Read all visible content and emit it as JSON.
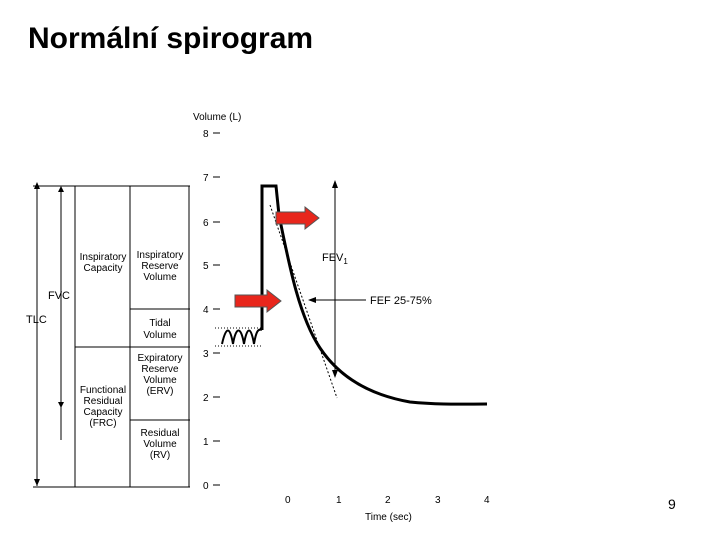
{
  "slide": {
    "title": "Normální spirogram",
    "page_number": "9"
  },
  "chart_data": {
    "type": "line",
    "ylabel": "Volume (L)",
    "xlabel": "Time (sec)",
    "y_ticks": [
      "0",
      "1",
      "2",
      "3",
      "4",
      "5",
      "6",
      "7",
      "8"
    ],
    "x_ticks": [
      "0",
      "1",
      "2",
      "3",
      "4"
    ],
    "xlim": [
      0,
      4
    ],
    "ylim": [
      0,
      8
    ],
    "curve_label": "FEV",
    "curve_label_sub": "1",
    "flow_label": "FEF 25-75%",
    "lung_volumes": {
      "irv": "Inspiratory Reserve Volume",
      "tidal": "Tidal Volume",
      "erv": "Expiratory Reserve Volume (ERV)",
      "rv": "Residual Volume (RV)"
    },
    "capacities": {
      "ic": "Inspiratory Capacity",
      "frc": "Functional Residual Capacity (FRC)",
      "fvc": "FVC",
      "tlc": "TLC"
    },
    "annotation_colors": {
      "arrow": "#e8261c",
      "arrow_outline": "#555555"
    }
  }
}
